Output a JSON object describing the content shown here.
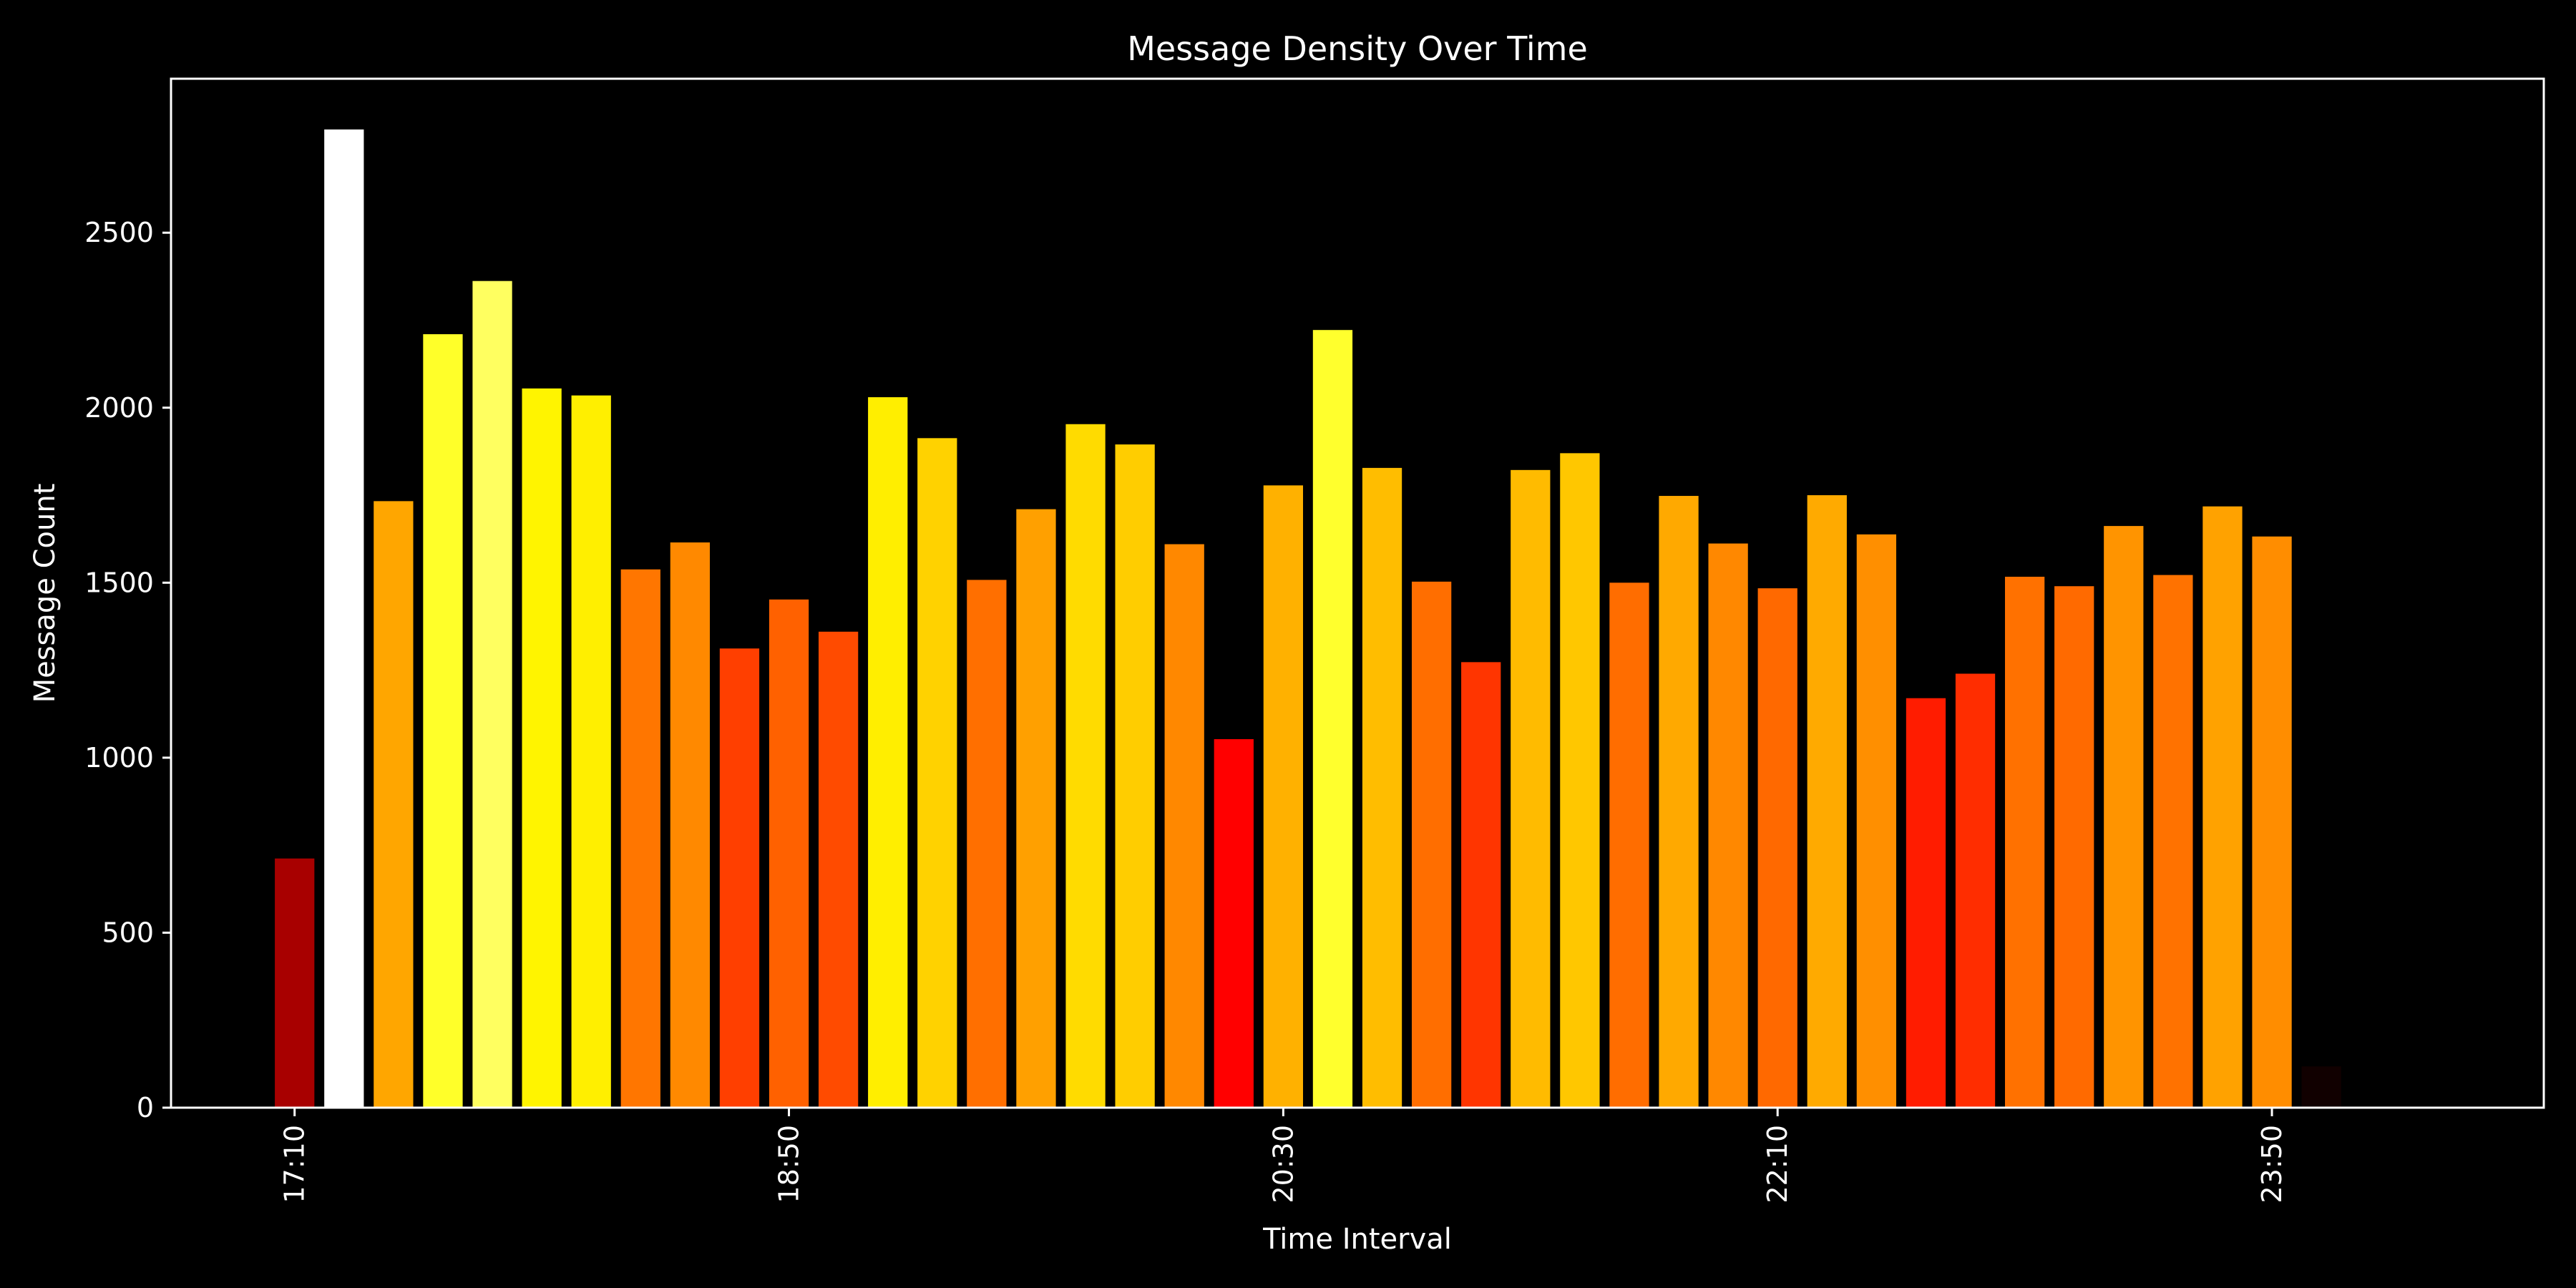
{
  "chart_data": {
    "type": "bar",
    "title": "Message Density Over Time",
    "xlabel": "Time Interval",
    "ylabel": "Message Count",
    "background": "#000000",
    "axis_color": "#ffffff",
    "colormap": "hot",
    "grid": false,
    "x_range_minutes": [
      "16:45",
      "24:45"
    ],
    "bin_minutes": 10,
    "ylim": [
      0,
      2940
    ],
    "x_tick_labels": [
      "17:10",
      "18:50",
      "20:30",
      "22:10",
      "23:50"
    ],
    "y_ticks": [
      0,
      500,
      1000,
      1500,
      2000,
      2500
    ],
    "x": [
      "17:10",
      "17:20",
      "17:30",
      "17:40",
      "17:50",
      "18:00",
      "18:10",
      "18:20",
      "18:30",
      "18:40",
      "18:50",
      "19:00",
      "19:10",
      "19:20",
      "19:30",
      "19:40",
      "19:50",
      "20:00",
      "20:10",
      "20:20",
      "20:30",
      "20:40",
      "20:50",
      "21:00",
      "21:10",
      "21:20",
      "21:30",
      "21:40",
      "21:50",
      "22:00",
      "22:10",
      "22:20",
      "22:30",
      "22:40",
      "22:50",
      "23:00",
      "23:10",
      "23:20",
      "23:30",
      "23:40",
      "23:50",
      "00:00"
    ],
    "values": [
      712,
      2795,
      1733,
      2210,
      2362,
      2055,
      2035,
      1538,
      1615,
      1312,
      1452,
      1360,
      2030,
      1913,
      1508,
      1710,
      1953,
      1895,
      1610,
      1053,
      1778,
      2222,
      1828,
      1503,
      1273,
      1822,
      1870,
      1500,
      1748,
      1612,
      1484,
      1750,
      1638,
      1170,
      1240,
      1517,
      1490,
      1662,
      1522,
      1718,
      1632,
      118
    ]
  }
}
